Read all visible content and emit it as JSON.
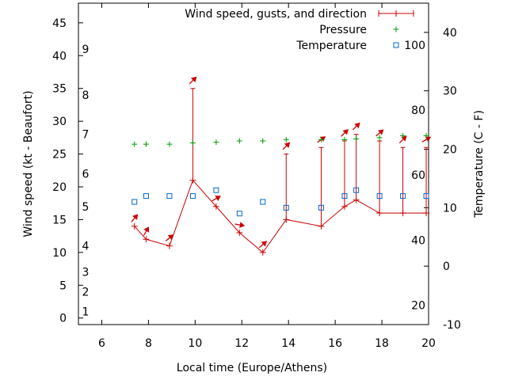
{
  "chart_data": {
    "type": "line",
    "xlabel": "Local time (Europe/Athens)",
    "ylabel": "Wind speed (kt - Beaufort)",
    "y2label": "Temperature (C - F)",
    "xlim": [
      5,
      20
    ],
    "ylim": [
      -1,
      48
    ],
    "y2lim": [
      -10,
      45
    ],
    "xticks": [
      6,
      8,
      10,
      12,
      14,
      16,
      18,
      20
    ],
    "yticks": [
      0,
      5,
      10,
      15,
      20,
      25,
      30,
      35,
      40,
      45
    ],
    "y2ticks": [
      -10,
      0,
      10,
      20,
      30,
      40
    ],
    "beaufort_labels": [
      {
        "label": "1",
        "y": 1
      },
      {
        "label": "2",
        "y": 4
      },
      {
        "label": "3",
        "y": 7
      },
      {
        "label": "4",
        "y": 11
      },
      {
        "label": "5",
        "y": 17
      },
      {
        "label": "6",
        "y": 22
      },
      {
        "label": "7",
        "y": 28
      },
      {
        "label": "8",
        "y": 34
      },
      {
        "label": "9",
        "y": 41
      }
    ],
    "fahrenheit_labels": [
      {
        "label": "20",
        "y2": -6.7
      },
      {
        "label": "40",
        "y2": 4.4
      },
      {
        "label": "60",
        "y2": 15.6
      },
      {
        "label": "80",
        "y2": 26.7
      },
      {
        "label": "100",
        "y2": 37.8
      }
    ],
    "series": [
      {
        "name": "Wind speed, gusts, and direction",
        "color": "#cc0000",
        "x": [
          7.4,
          7.9,
          8.9,
          9.9,
          10.9,
          11.9,
          12.9,
          13.9,
          15.4,
          16.4,
          16.9,
          17.9,
          18.9,
          19.9
        ],
        "y": [
          14,
          12,
          11,
          21,
          17,
          13,
          10,
          15,
          14,
          17,
          18,
          16,
          16,
          16
        ],
        "gusts": [
          14,
          12,
          11,
          35,
          17,
          13,
          10,
          25,
          26,
          27,
          28,
          27,
          26,
          26
        ],
        "direction_deg": [
          220,
          210,
          230,
          225,
          240,
          280,
          230,
          225,
          235,
          225,
          225,
          230,
          225,
          240
        ]
      },
      {
        "name": "Pressure",
        "color": "#009900",
        "x": [
          7.4,
          7.9,
          8.9,
          9.9,
          10.9,
          11.9,
          12.9,
          13.9,
          15.4,
          16.4,
          16.9,
          17.9,
          18.9,
          19.9
        ],
        "y": [
          26.5,
          26.5,
          26.5,
          26.7,
          26.8,
          27,
          27,
          27.2,
          27.2,
          27.2,
          27.3,
          27.5,
          27.8,
          27.8
        ]
      },
      {
        "name": "Temperature",
        "color": "#0066cc",
        "x": [
          7.4,
          7.9,
          8.9,
          9.9,
          10.9,
          11.9,
          12.9,
          13.9,
          15.4,
          16.4,
          16.9,
          17.9,
          18.9,
          19.9
        ],
        "y2": [
          11,
          12,
          12,
          12,
          13,
          9,
          11,
          10,
          10,
          12,
          13,
          12,
          12,
          12
        ]
      }
    ]
  }
}
